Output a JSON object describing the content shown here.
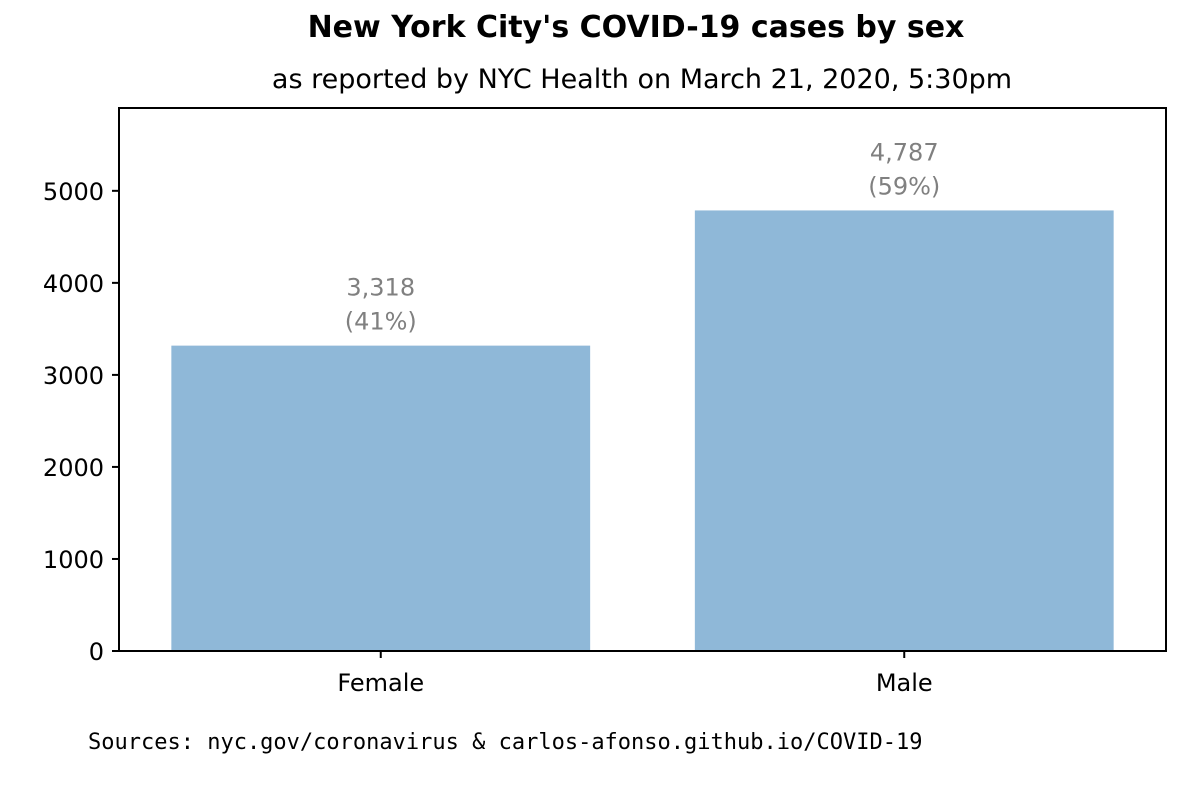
{
  "chart_data": {
    "type": "bar",
    "title": "New York City's COVID-19 cases by sex",
    "subtitle": "as reported by NYC Health on March 21, 2020, 5:30pm",
    "categories": [
      "Female",
      "Male"
    ],
    "values": [
      3318,
      4787
    ],
    "value_labels": [
      "3,318",
      "4,787"
    ],
    "percent_labels": [
      "(41%)",
      "(59%)"
    ],
    "ylim": [
      0,
      5900
    ],
    "yticks": [
      0,
      1000,
      2000,
      3000,
      4000,
      5000
    ],
    "xlabel": "",
    "ylabel": "",
    "grid": false,
    "bar_color": "#8fb8d8",
    "label_color": "#808080"
  },
  "footer": {
    "sources": "Sources: nyc.gov/coronavirus & carlos-afonso.github.io/COVID-19"
  }
}
